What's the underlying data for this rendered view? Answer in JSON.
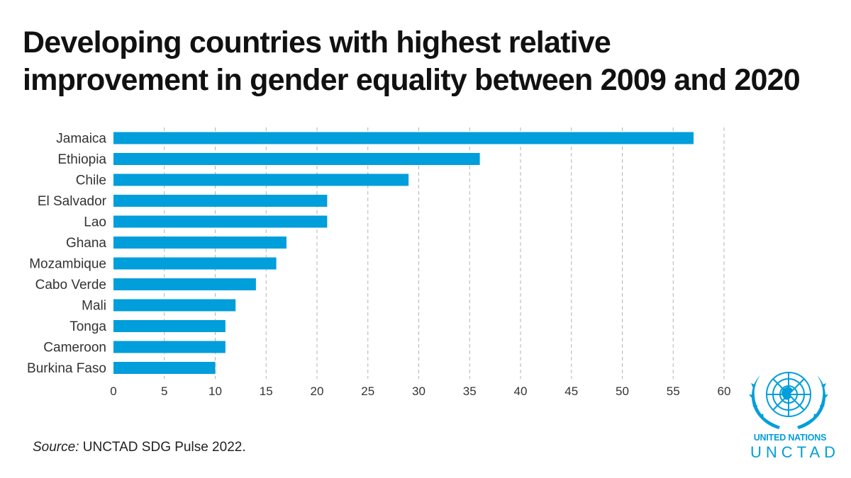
{
  "title_line1": "Developing countries with highest relative",
  "title_line2": "improvement in gender equality between 2009 and 2020",
  "source_label": "Source:",
  "source_text": " UNCTAD SDG Pulse 2022.",
  "logo": {
    "name": "un-emblem",
    "line1": "UNITED NATIONS",
    "line2": "UNCTAD"
  },
  "colors": {
    "bar": "#009edb",
    "grid": "#b3b3b3",
    "text": "#333333"
  },
  "chart_data": {
    "type": "bar",
    "orientation": "horizontal",
    "categories": [
      "Jamaica",
      "Ethiopia",
      "Chile",
      "El Salvador",
      "Lao",
      "Ghana",
      "Mozambique",
      "Cabo Verde",
      "Mali",
      "Tonga",
      "Cameroon",
      "Burkina Faso"
    ],
    "values": [
      57,
      36,
      29,
      21,
      21,
      17,
      16,
      14,
      12,
      11,
      11,
      10
    ],
    "xlim": [
      0,
      60
    ],
    "xticks": [
      "0",
      "5",
      "10",
      "15",
      "20",
      "25",
      "30",
      "35",
      "40",
      "45",
      "50",
      "55",
      "60"
    ],
    "grid": "vertical dashed"
  }
}
